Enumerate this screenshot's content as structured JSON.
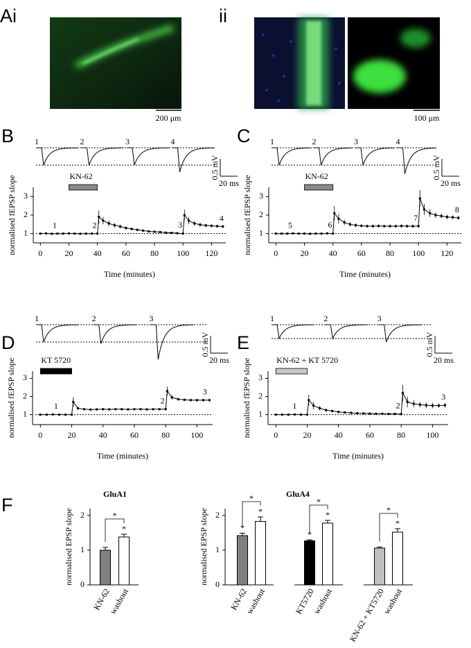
{
  "figure": {
    "panel_labels": [
      "Ai",
      "ii",
      "B",
      "C",
      "D",
      "E",
      "F"
    ],
    "images": [
      {
        "scale_label": "200 μm"
      },
      {
        "scale_label": "100 μm"
      }
    ]
  },
  "chart_data": [
    {
      "type": "line",
      "xlabel": "Time (minutes)",
      "ylabel": "normalised fEPSP slope",
      "x": [
        0,
        4,
        8,
        12,
        16,
        20,
        24,
        28,
        32,
        36,
        40,
        41,
        44,
        48,
        52,
        56,
        60,
        64,
        68,
        72,
        76,
        80,
        84,
        88,
        92,
        96,
        100,
        101,
        104,
        108,
        112,
        116,
        120,
        124,
        128
      ],
      "values": [
        1.0,
        1.01,
        0.99,
        1.0,
        1.0,
        1.01,
        1.0,
        0.99,
        1.0,
        1.0,
        1.0,
        1.9,
        1.7,
        1.55,
        1.45,
        1.38,
        1.3,
        1.25,
        1.2,
        1.16,
        1.12,
        1.1,
        1.08,
        1.05,
        1.04,
        1.02,
        1.0,
        2.0,
        1.7,
        1.55,
        1.48,
        1.44,
        1.42,
        1.4,
        1.38
      ],
      "errors": [
        0.02,
        0.02,
        0.02,
        0.02,
        0.02,
        0.02,
        0.02,
        0.02,
        0.02,
        0.02,
        0.02,
        0.35,
        0.2,
        0.15,
        0.12,
        0.1,
        0.08,
        0.07,
        0.07,
        0.06,
        0.06,
        0.05,
        0.05,
        0.05,
        0.05,
        0.05,
        0.05,
        0.3,
        0.2,
        0.12,
        0.1,
        0.08,
        0.08,
        0.08,
        0.08
      ],
      "color": "#000000",
      "xlim": [
        -5,
        130
      ],
      "xticks": [
        0,
        20,
        40,
        60,
        80,
        100,
        120
      ],
      "ylim": [
        0.5,
        3.5
      ],
      "yticks": [
        1,
        2,
        3
      ],
      "baseline": 1,
      "drug": {
        "label": "KN-62",
        "start": 20,
        "end": 40,
        "color": "#888888"
      },
      "point_labels": [
        {
          "text": "1",
          "x": 10
        },
        {
          "text": "2",
          "x": 38
        },
        {
          "text": "3",
          "x": 98
        },
        {
          "text": "4",
          "x": 127
        }
      ],
      "traces": {
        "labels": [
          "1",
          "2",
          "3",
          "4"
        ],
        "amplitudes": [
          0.5,
          0.5,
          0.5,
          0.7
        ]
      },
      "scale_bar": {
        "mV": 0.5,
        "mV_label": "0.5 mV",
        "ms": 20,
        "ms_label": "20 ms"
      }
    },
    {
      "type": "line",
      "xlabel": "Time (minutes)",
      "ylabel": "normalised fEPSP slope",
      "x": [
        0,
        4,
        8,
        12,
        16,
        20,
        24,
        28,
        32,
        36,
        40,
        41,
        44,
        48,
        52,
        56,
        60,
        64,
        68,
        72,
        76,
        80,
        84,
        88,
        92,
        96,
        100,
        101,
        104,
        108,
        112,
        116,
        120,
        124,
        128
      ],
      "values": [
        1.0,
        1.0,
        1.0,
        1.01,
        1.0,
        1.0,
        0.99,
        1.0,
        1.0,
        1.01,
        1.0,
        2.1,
        1.8,
        1.6,
        1.5,
        1.45,
        1.42,
        1.4,
        1.4,
        1.41,
        1.4,
        1.4,
        1.4,
        1.41,
        1.4,
        1.4,
        1.4,
        2.9,
        2.3,
        2.1,
        2.0,
        1.95,
        1.9,
        1.88,
        1.85
      ],
      "errors": [
        0.02,
        0.02,
        0.02,
        0.02,
        0.02,
        0.02,
        0.02,
        0.02,
        0.02,
        0.02,
        0.02,
        0.4,
        0.25,
        0.15,
        0.12,
        0.1,
        0.08,
        0.08,
        0.08,
        0.08,
        0.08,
        0.08,
        0.08,
        0.08,
        0.08,
        0.08,
        0.08,
        0.45,
        0.3,
        0.2,
        0.15,
        0.12,
        0.12,
        0.1,
        0.1
      ],
      "color": "#000000",
      "xlim": [
        -5,
        130
      ],
      "xticks": [
        0,
        20,
        40,
        60,
        80,
        100,
        120
      ],
      "ylim": [
        0.5,
        3.5
      ],
      "yticks": [
        1,
        2,
        3
      ],
      "baseline": 1,
      "drug": {
        "label": "KN-62",
        "start": 20,
        "end": 40,
        "color": "#888888"
      },
      "point_labels": [
        {
          "text": "5",
          "x": 10
        },
        {
          "text": "6",
          "x": 38
        },
        {
          "text": "7",
          "x": 98
        },
        {
          "text": "8",
          "x": 127
        }
      ],
      "traces": {
        "labels": [
          "1",
          "2",
          "3",
          "4"
        ],
        "amplitudes": [
          0.5,
          0.5,
          0.5,
          0.75
        ]
      },
      "scale_bar": {
        "mV": 0.5,
        "mV_label": "0.5 mV",
        "ms": 20,
        "ms_label": "20 ms"
      }
    },
    {
      "type": "line",
      "xlabel": "Time (minutes)",
      "ylabel": "normalised fEPSP slope",
      "x": [
        0,
        4,
        8,
        12,
        16,
        20,
        21,
        24,
        28,
        32,
        36,
        40,
        44,
        48,
        52,
        56,
        60,
        64,
        68,
        72,
        76,
        80,
        81,
        84,
        88,
        92,
        96,
        100,
        104,
        108
      ],
      "values": [
        1.0,
        1.0,
        1.01,
        1.0,
        1.0,
        1.0,
        1.7,
        1.35,
        1.3,
        1.28,
        1.29,
        1.3,
        1.29,
        1.3,
        1.3,
        1.29,
        1.3,
        1.3,
        1.29,
        1.3,
        1.3,
        1.3,
        2.3,
        1.95,
        1.85,
        1.82,
        1.8,
        1.8,
        1.8,
        1.8
      ],
      "errors": [
        0.02,
        0.02,
        0.02,
        0.02,
        0.02,
        0.02,
        0.25,
        0.08,
        0.04,
        0.03,
        0.03,
        0.03,
        0.03,
        0.03,
        0.03,
        0.03,
        0.03,
        0.03,
        0.03,
        0.03,
        0.03,
        0.03,
        0.25,
        0.12,
        0.08,
        0.06,
        0.06,
        0.06,
        0.06,
        0.06
      ],
      "color": "#000000",
      "xlim": [
        -5,
        110
      ],
      "xticks": [
        0,
        20,
        40,
        60,
        80,
        100
      ],
      "ylim": [
        0.45,
        3.4
      ],
      "yticks": [
        1,
        2,
        3
      ],
      "baseline": 1,
      "drug": {
        "label": "KT 5720",
        "start": 0,
        "end": 20,
        "color": "#000000"
      },
      "point_labels": [
        {
          "text": "1",
          "x": 10
        },
        {
          "text": "2",
          "x": 78
        },
        {
          "text": "3",
          "x": 105
        }
      ],
      "traces": {
        "labels": [
          "1",
          "2",
          "3"
        ],
        "amplitudes": [
          0.5,
          0.55,
          1.0
        ]
      },
      "scale_bar": {
        "mV": 0.5,
        "mV_label": "0.5 mV",
        "ms": 20,
        "ms_label": "20 ms"
      }
    },
    {
      "type": "line",
      "xlabel": "Time (minutes)",
      "ylabel": "normalised fEPSP slope",
      "x": [
        0,
        4,
        8,
        12,
        16,
        20,
        21,
        24,
        28,
        32,
        36,
        40,
        44,
        48,
        52,
        56,
        60,
        64,
        68,
        72,
        76,
        80,
        81,
        84,
        88,
        92,
        96,
        100,
        104,
        108
      ],
      "values": [
        1.0,
        1.0,
        1.0,
        1.01,
        1.0,
        1.0,
        1.8,
        1.5,
        1.35,
        1.25,
        1.2,
        1.15,
        1.12,
        1.1,
        1.08,
        1.07,
        1.06,
        1.05,
        1.05,
        1.04,
        1.04,
        1.03,
        2.2,
        1.7,
        1.6,
        1.55,
        1.52,
        1.5,
        1.5,
        1.52
      ],
      "errors": [
        0.02,
        0.02,
        0.02,
        0.02,
        0.02,
        0.02,
        0.3,
        0.2,
        0.12,
        0.08,
        0.07,
        0.06,
        0.05,
        0.05,
        0.05,
        0.05,
        0.05,
        0.05,
        0.05,
        0.05,
        0.05,
        0.05,
        0.45,
        0.3,
        0.2,
        0.15,
        0.15,
        0.15,
        0.12,
        0.12
      ],
      "color": "#000000",
      "xlim": [
        -5,
        110
      ],
      "xticks": [
        0,
        20,
        40,
        60,
        80,
        100
      ],
      "ylim": [
        0.45,
        3.4
      ],
      "yticks": [
        1,
        2,
        3
      ],
      "baseline": 1,
      "drug": {
        "label": "KN-62 + KT 5720",
        "start": 0,
        "end": 20,
        "color": "#c8c8c8"
      },
      "point_labels": [
        {
          "text": "1",
          "x": 12
        },
        {
          "text": "2",
          "x": 78
        },
        {
          "text": "3",
          "x": 107
        }
      ],
      "traces": {
        "labels": [
          "1",
          "2",
          "3"
        ],
        "amplitudes": [
          0.4,
          0.4,
          0.5
        ]
      },
      "scale_bar": {
        "mV": 0.5,
        "mV_label": "0.5 mV",
        "ms": 20,
        "ms_label": "20 ms"
      }
    },
    {
      "type": "bar",
      "title": "GluA1",
      "ylabel": "normalised EPSP slope",
      "categories": [
        "KN-62",
        "washout"
      ],
      "values": [
        1.0,
        1.38
      ],
      "errors": [
        0.08,
        0.08
      ],
      "colors": [
        "#808080",
        "#ffffff"
      ],
      "ylim": [
        0,
        2.2
      ],
      "yticks": [
        0,
        1,
        2
      ],
      "stars": [
        null,
        "*"
      ],
      "bracket_star": "*"
    },
    {
      "type": "bar",
      "title": "GluA4",
      "ylabel": "normalised EPSP slope",
      "categories": [
        "KN-62",
        "washout"
      ],
      "values": [
        1.42,
        1.83
      ],
      "errors": [
        0.07,
        0.13
      ],
      "colors": [
        "#808080",
        "#ffffff"
      ],
      "ylim": [
        0,
        2.2
      ],
      "yticks": [
        0,
        1,
        2
      ],
      "stars": [
        "*",
        "*"
      ],
      "bracket_star": "*"
    },
    {
      "type": "bar",
      "categories": [
        "KT5720",
        "washout"
      ],
      "values": [
        1.27,
        1.78
      ],
      "errors": [
        0.03,
        0.08
      ],
      "colors": [
        "#000000",
        "#ffffff"
      ],
      "ylim": [
        0,
        2.2
      ],
      "stars": [
        "*",
        "*"
      ],
      "bracket_star": "*"
    },
    {
      "type": "bar",
      "categories": [
        "KN-62 + KT5720",
        "washout"
      ],
      "values": [
        1.06,
        1.52
      ],
      "errors": [
        0.03,
        0.1
      ],
      "colors": [
        "#c0c0c0",
        "#ffffff"
      ],
      "ylim": [
        0,
        2.2
      ],
      "stars": [
        null,
        "*"
      ],
      "bracket_star": "*"
    }
  ]
}
